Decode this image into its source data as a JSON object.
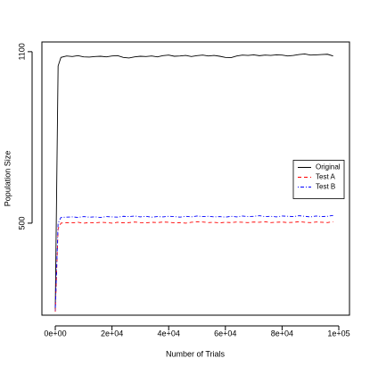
{
  "chart_data": {
    "type": "line",
    "x_label": "Number of Trials",
    "y_label": "Population Size",
    "x": [
      0,
      1000,
      2000,
      4000,
      6000,
      8000,
      10000,
      12000,
      14000,
      16000,
      18000,
      20000,
      22000,
      24000,
      26000,
      28000,
      30000,
      32000,
      34000,
      36000,
      38000,
      40000,
      42000,
      44000,
      46000,
      48000,
      50000,
      52000,
      54000,
      56000,
      58000,
      60000,
      62000,
      64000,
      66000,
      68000,
      70000,
      72000,
      74000,
      76000,
      78000,
      80000,
      82000,
      84000,
      86000,
      88000,
      90000,
      92000,
      94000,
      96000,
      98000
    ],
    "series": [
      {
        "name": "Original",
        "color": "#000000",
        "dash": "solid",
        "values": [
          200,
          1050,
          1080,
          1085,
          1083,
          1086,
          1082,
          1081,
          1083,
          1084,
          1082,
          1085,
          1086,
          1080,
          1078,
          1082,
          1084,
          1083,
          1085,
          1082,
          1086,
          1088,
          1084,
          1085,
          1087,
          1083,
          1086,
          1088,
          1085,
          1087,
          1084,
          1080,
          1079,
          1085,
          1088,
          1087,
          1089,
          1086,
          1088,
          1087,
          1089,
          1088,
          1085,
          1087,
          1090,
          1092,
          1088,
          1089,
          1090,
          1091,
          1085
        ]
      },
      {
        "name": "Test A",
        "color": "#ff0000",
        "dash": "dashed",
        "values": [
          190,
          480,
          500,
          502,
          501,
          503,
          500,
          502,
          501,
          503,
          502,
          500,
          503,
          501,
          502,
          504,
          502,
          501,
          503,
          502,
          504,
          503,
          501,
          502,
          500,
          503,
          505,
          504,
          502,
          503,
          501,
          503,
          502,
          504,
          503,
          502,
          504,
          503,
          505,
          502,
          503,
          504,
          502,
          503,
          505,
          503,
          502,
          504,
          503,
          502,
          505
        ]
      },
      {
        "name": "Test B",
        "color": "#0000ff",
        "dash": "dotdash",
        "values": [
          195,
          500,
          520,
          521,
          522,
          520,
          523,
          521,
          522,
          520,
          523,
          522,
          521,
          524,
          523,
          525,
          522,
          524,
          521,
          523,
          522,
          524,
          523,
          521,
          524,
          522,
          525,
          523,
          524,
          522,
          523,
          521,
          524,
          522,
          525,
          523,
          524,
          526,
          523,
          524,
          522,
          525,
          524,
          523,
          526,
          524,
          522,
          525,
          523,
          524,
          527
        ]
      }
    ],
    "xlim": [
      -4717,
      103774
    ],
    "xticks": [
      {
        "value": 0,
        "label": "0e+00"
      },
      {
        "value": 20000,
        "label": "2e+04"
      },
      {
        "value": 40000,
        "label": "4e+04"
      },
      {
        "value": 60000,
        "label": "6e+04"
      },
      {
        "value": 80000,
        "label": "8e+04"
      },
      {
        "value": 100000,
        "label": "1e+05"
      }
    ],
    "ylim": [
      178,
      1134
    ],
    "yticks": [
      500,
      1100
    ],
    "legend": "right"
  }
}
